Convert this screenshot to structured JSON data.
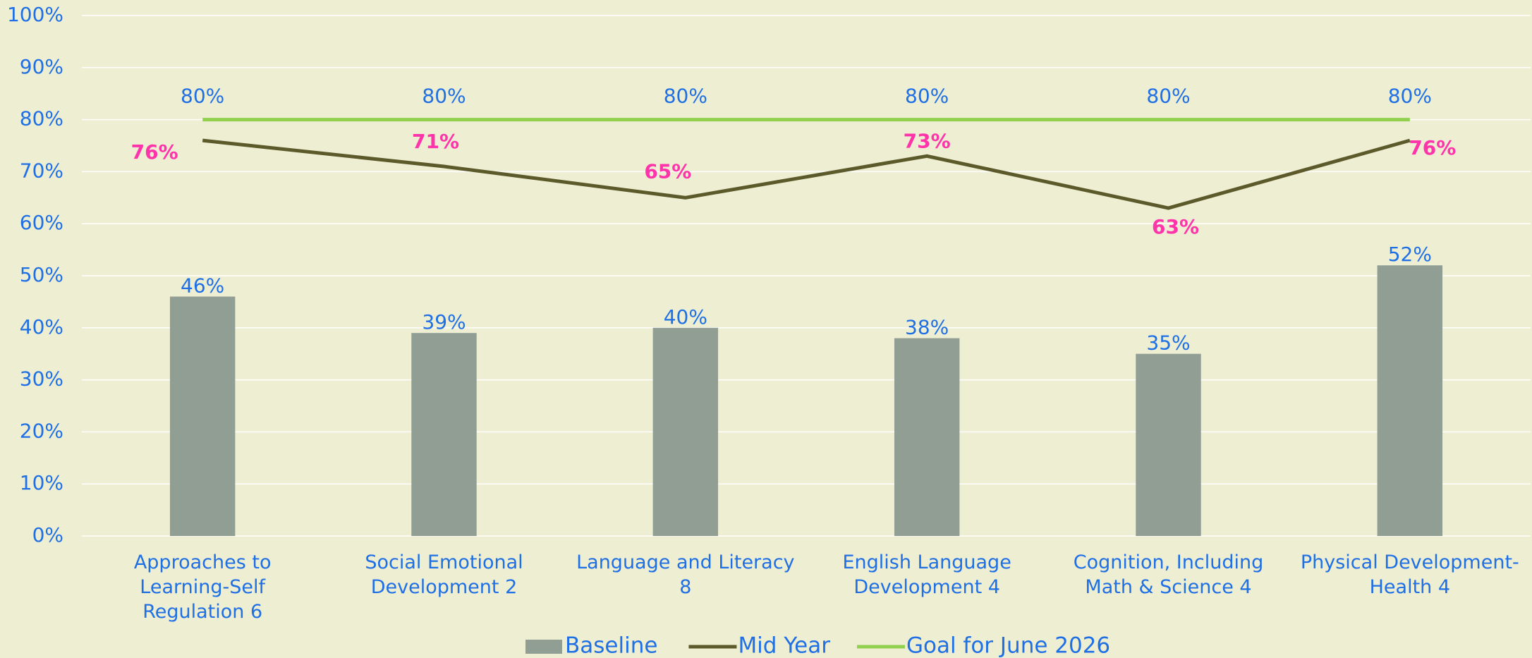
{
  "chart_data": {
    "type": "combo",
    "categories": [
      "Approaches to Learning-Self Regulation 6",
      "Social Emotional Development 2",
      "Language and Literacy 8",
      "English Language Development 4",
      "Cognition, Including Math & Science 4",
      "Physical Development-Health 4"
    ],
    "series": [
      {
        "name": "Baseline",
        "type": "bar",
        "color": "#919e94",
        "values": [
          46,
          39,
          40,
          38,
          35,
          52
        ],
        "value_labels": [
          "46%",
          "39%",
          "40%",
          "38%",
          "35%",
          "52%"
        ]
      },
      {
        "name": "Mid Year",
        "type": "line",
        "color": "#5c5a2a",
        "values": [
          76,
          71,
          65,
          73,
          63,
          76
        ],
        "value_labels": [
          "76%",
          "71%",
          "65%",
          "73%",
          "63%",
          "76%"
        ]
      },
      {
        "name": "Goal for June 2026",
        "type": "line",
        "color": "#92d050",
        "values": [
          80,
          80,
          80,
          80,
          80,
          80
        ],
        "value_labels": [
          "80%",
          "80%",
          "80%",
          "80%",
          "80%",
          "80%"
        ]
      }
    ],
    "ylim": [
      0,
      100
    ],
    "yticks": [
      {
        "value": 0,
        "label": "0%"
      },
      {
        "value": 10,
        "label": "10%"
      },
      {
        "value": 20,
        "label": "20%"
      },
      {
        "value": 30,
        "label": "30%"
      },
      {
        "value": 40,
        "label": "40%"
      },
      {
        "value": 50,
        "label": "50%"
      },
      {
        "value": 60,
        "label": "60%"
      },
      {
        "value": 70,
        "label": "70%"
      },
      {
        "value": 80,
        "label": "80%"
      },
      {
        "value": 90,
        "label": "90%"
      },
      {
        "value": 100,
        "label": "100%"
      }
    ],
    "grid": true,
    "legend": "bottom"
  }
}
